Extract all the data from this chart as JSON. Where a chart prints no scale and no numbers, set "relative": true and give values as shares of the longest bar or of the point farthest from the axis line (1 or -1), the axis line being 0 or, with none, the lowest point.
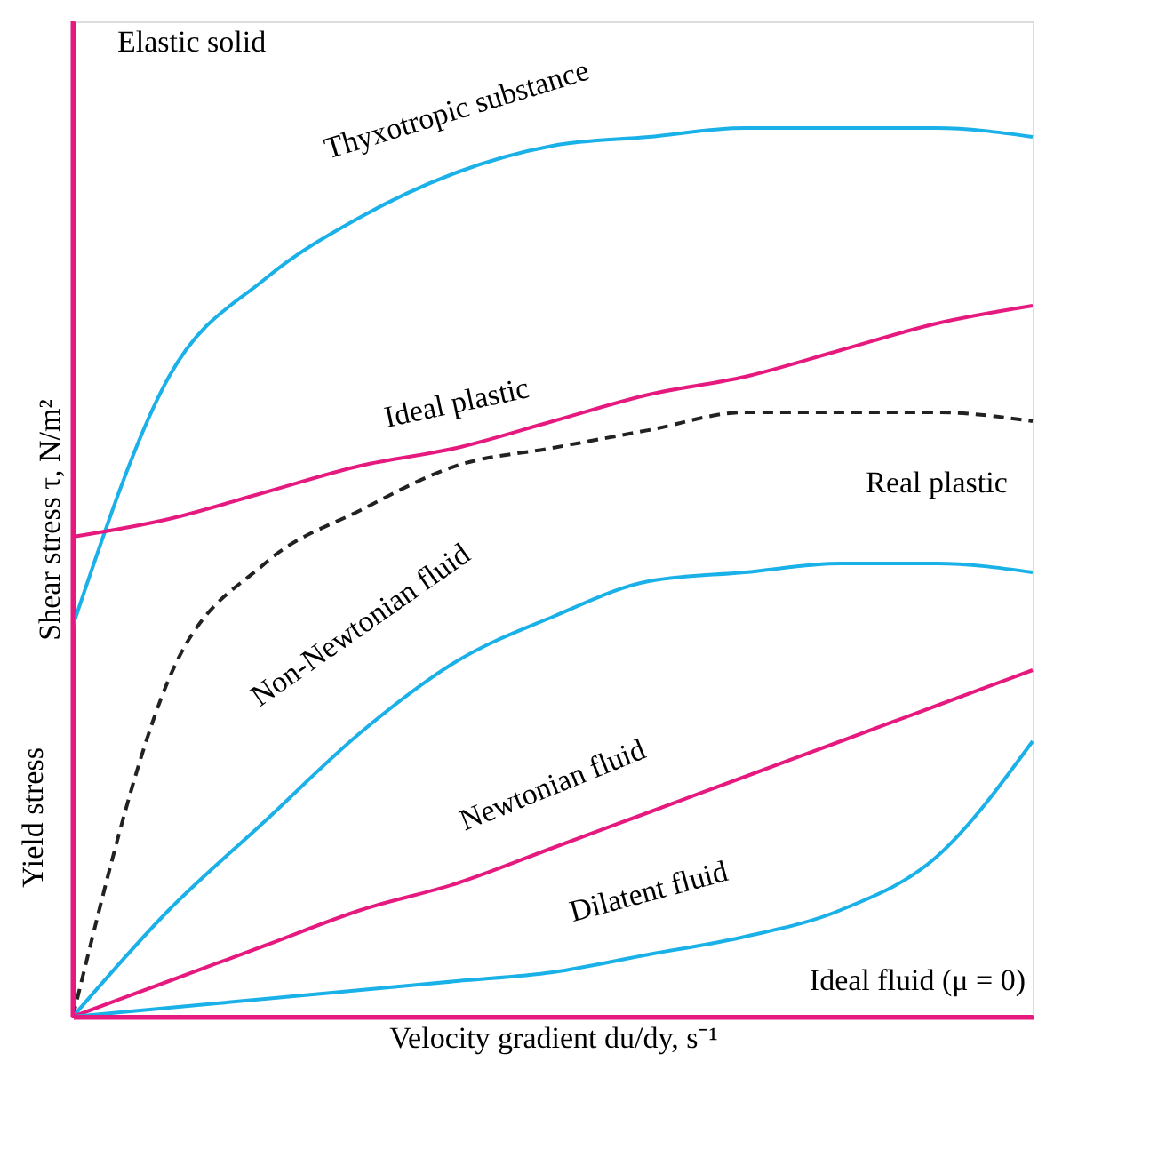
{
  "chart_data": {
    "type": "line",
    "relative": true,
    "xlabel": "Velocity gradient du/dy, s⁻¹",
    "ylabel": "Shear stress τ, N/m²",
    "marker": "none",
    "grid": false,
    "categories": [
      null,
      null,
      null,
      null,
      null,
      null,
      null,
      null,
      null,
      null,
      null
    ],
    "series": [
      {
        "name": "Thyxotropic substance",
        "color": "#1ab0e8",
        "values": [
          0.44,
          0.72,
          0.83,
          0.9,
          0.95,
          0.98,
          0.99,
          1.0,
          1.0,
          1.0,
          0.99
        ]
      },
      {
        "name": "Ideal plastic",
        "color": "#e6197f",
        "values": [
          0.54,
          0.56,
          0.59,
          0.62,
          0.64,
          0.67,
          0.7,
          0.72,
          0.75,
          0.78,
          0.8
        ]
      },
      {
        "name": "Real plastic",
        "color": "#222222",
        "line_style": "dashed",
        "values": [
          0,
          0.38,
          0.51,
          0.57,
          0.62,
          0.64,
          0.66,
          0.68,
          0.68,
          0.68,
          0.67
        ]
      },
      {
        "name": "Non-Newtonian fluid",
        "color": "#1ab0e8",
        "values": [
          0,
          0.12,
          0.22,
          0.32,
          0.4,
          0.45,
          0.49,
          0.5,
          0.51,
          0.51,
          0.5
        ]
      },
      {
        "name": "Newtonian fluid",
        "color": "#e6197f",
        "values": [
          0,
          0.04,
          0.08,
          0.12,
          0.15,
          0.19,
          0.23,
          0.27,
          0.31,
          0.35,
          0.39
        ]
      },
      {
        "name": "Dilatent fluid",
        "color": "#1ab0e8",
        "values": [
          0,
          0.01,
          0.02,
          0.03,
          0.04,
          0.05,
          0.07,
          0.09,
          0.12,
          0.18,
          0.31
        ]
      },
      {
        "name": "Ideal fluid (μ = 0)",
        "color": "#e6197f",
        "values": [
          0,
          0,
          0,
          0,
          0,
          0,
          0,
          0,
          0,
          0,
          0
        ]
      }
    ],
    "annotations": [
      "Elastic solid",
      "Yield stress"
    ]
  }
}
